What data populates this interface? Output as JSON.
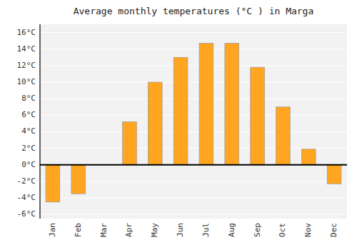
{
  "chart_data": {
    "type": "bar",
    "title": "Average monthly temperatures (°C ) in Marga",
    "categories": [
      "Jan",
      "Feb",
      "Mar",
      "Apr",
      "May",
      "Jun",
      "Jul",
      "Aug",
      "Sep",
      "Oct",
      "Nov",
      "Dec"
    ],
    "values": [
      -4.5,
      -3.5,
      0.0,
      5.2,
      10.0,
      13.0,
      14.7,
      14.7,
      11.8,
      7.0,
      1.9,
      -2.3
    ],
    "color": "#FFA520",
    "ylim": [
      -6.5,
      17
    ],
    "yticks": [
      {
        "value": -6,
        "label": "-6°C"
      },
      {
        "value": -4,
        "label": "-4°C"
      },
      {
        "value": -2,
        "label": "-2°C"
      },
      {
        "value": 0,
        "label": "0°C"
      },
      {
        "value": 2,
        "label": "2°C"
      },
      {
        "value": 4,
        "label": "4°C"
      },
      {
        "value": 6,
        "label": "6°C"
      },
      {
        "value": 8,
        "label": "8°C"
      },
      {
        "value": 10,
        "label": "10°C"
      },
      {
        "value": 12,
        "label": "12°C"
      },
      {
        "value": 14,
        "label": "14°C"
      },
      {
        "value": 16,
        "label": "16°C"
      }
    ],
    "grid": true
  }
}
